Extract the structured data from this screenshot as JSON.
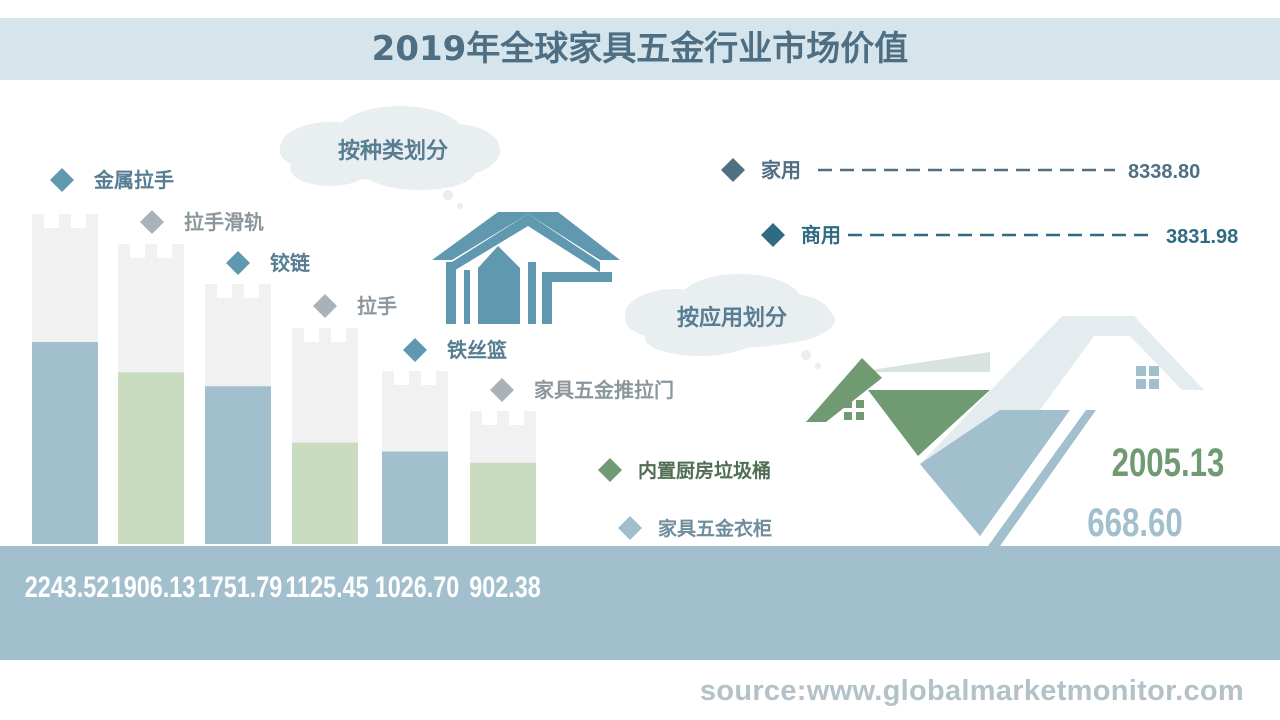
{
  "title": "2019年全球家具五金行业市场价值",
  "source": "source:www.globalmarketmonitor.com",
  "colors": {
    "blue": "#a1bfcd",
    "green": "#c9dcbf",
    "tower_bg": "#f1f1f1",
    "diamond_blue": "#6098b0",
    "diamond_gray": "#a9b2b8",
    "dark_blue": "#4a7892",
    "dark_green": "#6f9a72"
  },
  "chart_data": [
    {
      "type": "bar",
      "title": "按种类划分",
      "categories": [
        "金属拉手",
        "拉手滑轨",
        "铰链",
        "拉手",
        "铁丝篮",
        "家具五金推拉门"
      ],
      "values": [
        2243.52,
        1906.13,
        1751.79,
        1125.45,
        1026.7,
        902.38
      ],
      "value_labels": [
        "2243.52",
        "1906.13",
        "1751.79",
        "1125.45",
        "1026.70",
        "902.38"
      ]
    },
    {
      "type": "bar",
      "title": "按应用划分",
      "categories": [
        "家用",
        "商用"
      ],
      "values": [
        8338.8,
        3831.98
      ],
      "value_labels": [
        "8338.80",
        "3831.98"
      ]
    },
    {
      "type": "bar",
      "categories": [
        "内置厨房垃圾桶",
        "家具五金衣柜"
      ],
      "values": [
        2005.13,
        668.6
      ],
      "value_labels": [
        "2005.13",
        "668.60"
      ]
    }
  ]
}
